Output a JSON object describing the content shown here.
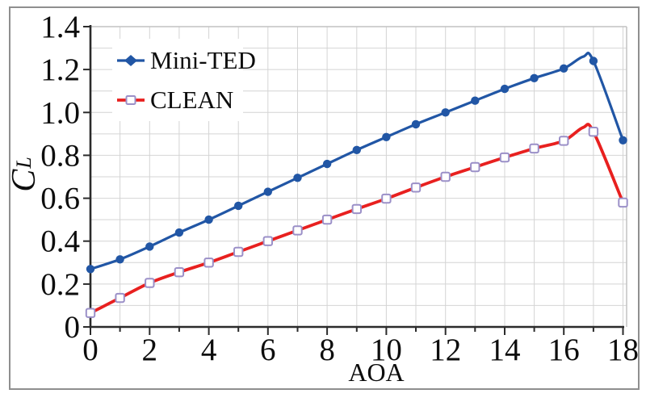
{
  "chart_data": {
    "type": "line",
    "title": "",
    "xlabel": "AOA",
    "ylabel_main": "C",
    "ylabel_sub": "L",
    "xlim": [
      0,
      18
    ],
    "ylim": [
      0,
      1.4
    ],
    "grid": true,
    "x_grid_step": 1,
    "y_grid_step": 0.1,
    "x_major_tick_step": 2,
    "x_minor_tick_step": 1,
    "y_major_tick_step": 0.2,
    "legend_position": "upper-left",
    "x_tick_labels": [
      "0",
      "2",
      "4",
      "6",
      "8",
      "10",
      "12",
      "14",
      "16",
      "18"
    ],
    "y_tick_labels": [
      "0",
      "0.2",
      "0.4",
      "0.6",
      "0.8",
      "1.0",
      "1.2",
      "1.4"
    ],
    "x": [
      0,
      1,
      2,
      3,
      4,
      5,
      6,
      7,
      8,
      9,
      10,
      11,
      12,
      13,
      14,
      15,
      16,
      17,
      18
    ],
    "series": [
      {
        "name": "Mini-TED",
        "marker": "filled-circle",
        "color": "#2156a5",
        "values": [
          0.27,
          0.315,
          0.375,
          0.44,
          0.5,
          0.565,
          0.63,
          0.695,
          0.76,
          0.825,
          0.885,
          0.945,
          1.0,
          1.055,
          1.11,
          1.16,
          1.205,
          1.24,
          0.87
        ],
        "curve_peak_overshoot": {
          "x": 16.65,
          "y": 1.26
        }
      },
      {
        "name": "CLEAN",
        "marker": "open-square",
        "color": "#e8201f",
        "marker_stroke": "#9b90c8",
        "marker_fill": "#ffffff",
        "values": [
          0.065,
          0.135,
          0.205,
          0.255,
          0.3,
          0.35,
          0.4,
          0.45,
          0.5,
          0.55,
          0.598,
          0.65,
          0.7,
          0.745,
          0.79,
          0.832,
          0.868,
          0.91,
          0.58
        ],
        "curve_peak_overshoot": {
          "x": 16.65,
          "y": 0.93
        }
      }
    ]
  },
  "colors": {
    "background": "#ffffff",
    "frame_border": "#8f8f8f",
    "plot_border": "#c2c2c2",
    "grid": "#d4d4d4",
    "axis": "#2b2b2b",
    "text": "#0d0d0d"
  }
}
